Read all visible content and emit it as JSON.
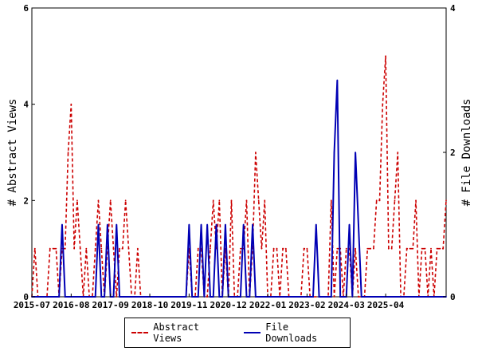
{
  "chart_data": {
    "type": "line",
    "xlabel": "",
    "ylabel_left": "# Abstract Views",
    "ylabel_right": "# File Downloads",
    "ylim_left": [
      0,
      6
    ],
    "ylim_right": [
      0,
      4
    ],
    "y_ticks_left": [
      "0",
      "2",
      "4",
      "6"
    ],
    "y_ticks_right": [
      "0",
      "2",
      "4"
    ],
    "x_tick_labels": [
      "2015-07",
      "2016-08",
      "2017-09",
      "2018-10",
      "2019-11",
      "2020-12",
      "2022-01",
      "2023-02",
      "2024-03",
      "2025-04"
    ],
    "x_tick_index": [
      0,
      13,
      26,
      39,
      52,
      65,
      78,
      91,
      104,
      117
    ],
    "legend_position": "bottom-center",
    "grid": false,
    "colors": {
      "views": "#cc0000",
      "downloads": "#0000b4"
    },
    "series": [
      {
        "name": "Abstract Views",
        "axis": "left",
        "style": "dashed",
        "values": [
          0,
          1,
          0,
          0,
          0,
          0,
          1,
          1,
          1,
          0,
          1,
          1,
          3,
          4,
          1,
          2,
          1,
          0,
          1,
          0,
          0,
          1,
          2,
          1,
          0,
          1,
          2,
          1,
          0,
          1,
          1,
          2,
          1,
          0,
          0,
          1,
          0,
          0,
          0,
          0,
          0,
          0,
          0,
          0,
          0,
          0,
          0,
          0,
          0,
          0,
          0,
          0,
          1,
          0,
          0,
          1,
          1,
          0,
          0,
          1,
          2,
          1,
          2,
          0,
          1,
          0,
          2,
          0,
          0,
          1,
          1,
          2,
          0,
          1,
          3,
          2,
          1,
          2,
          0,
          0,
          1,
          1,
          0,
          1,
          1,
          0,
          0,
          0,
          0,
          0,
          1,
          1,
          0,
          0,
          0,
          0,
          0,
          0,
          0,
          2,
          0,
          1,
          1,
          0,
          1,
          1,
          0,
          1,
          0,
          0,
          0,
          1,
          1,
          1,
          2,
          2,
          4,
          5,
          1,
          1,
          2,
          3,
          0,
          0,
          1,
          1,
          1,
          2,
          0,
          1,
          1,
          0,
          1,
          0,
          1,
          1,
          1,
          2
        ]
      },
      {
        "name": "File Downloads",
        "axis": "right",
        "style": "solid",
        "values": [
          0,
          0,
          0,
          0,
          0,
          0,
          0,
          0,
          0,
          0,
          1,
          0,
          0,
          0,
          0,
          0,
          0,
          0,
          0,
          0,
          0,
          0,
          1,
          0,
          0,
          1,
          0,
          0,
          1,
          0,
          0,
          0,
          0,
          0,
          0,
          0,
          0,
          0,
          0,
          0,
          0,
          0,
          0,
          0,
          0,
          0,
          0,
          0,
          0,
          0,
          0,
          0,
          1,
          0,
          0,
          0,
          1,
          0,
          1,
          0,
          0,
          1,
          0,
          0,
          1,
          0,
          0,
          0,
          0,
          0,
          1,
          0,
          0,
          1,
          0,
          0,
          0,
          0,
          0,
          0,
          0,
          0,
          0,
          0,
          0,
          0,
          0,
          0,
          0,
          0,
          0,
          0,
          0,
          0,
          1,
          0,
          0,
          0,
          0,
          0,
          2,
          3,
          0,
          0,
          0,
          1,
          0,
          2,
          1,
          0,
          0,
          0,
          0,
          0,
          0,
          0,
          0,
          0,
          0,
          0,
          0,
          0,
          0,
          0,
          0,
          0,
          0,
          0,
          0,
          0,
          0,
          0,
          0,
          0,
          0,
          0,
          0,
          0
        ]
      }
    ]
  }
}
